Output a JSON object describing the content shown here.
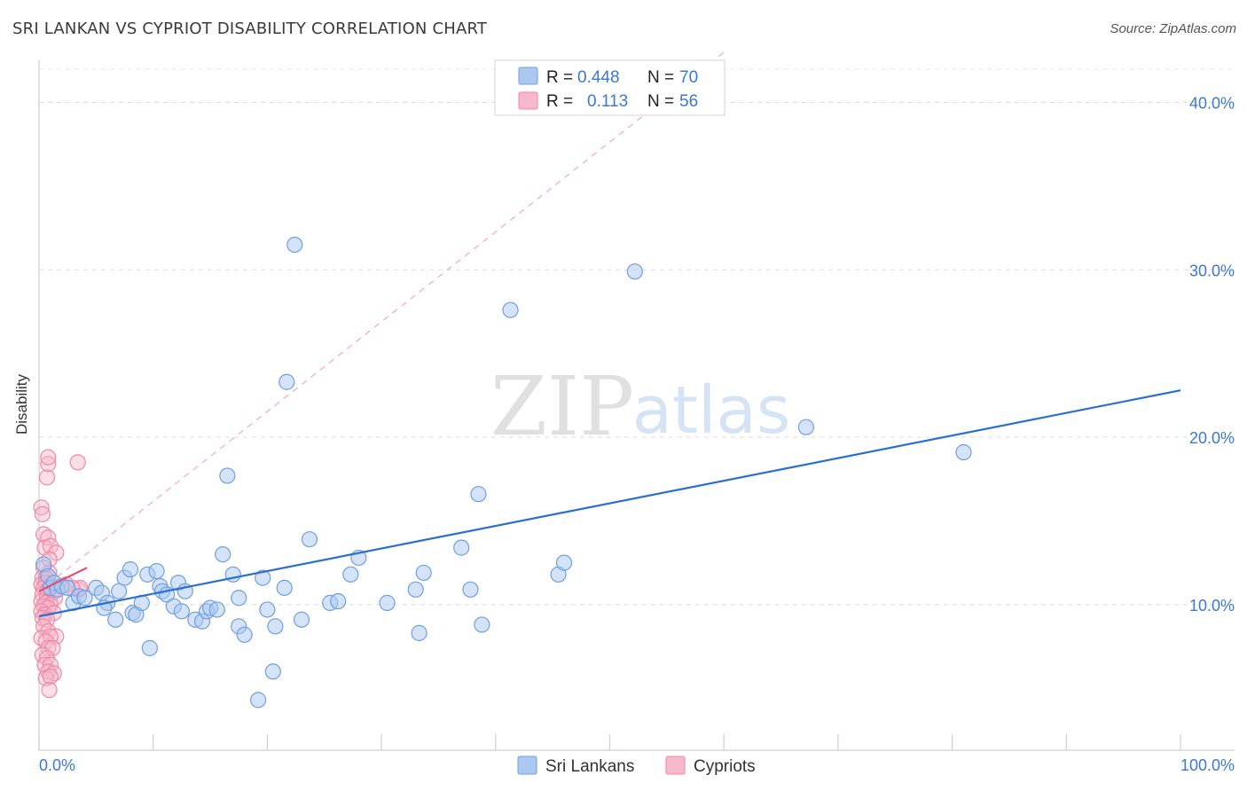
{
  "header": {
    "title": "SRI LANKAN VS CYPRIOT DISABILITY CORRELATION CHART",
    "source": "Source: ZipAtlas.com"
  },
  "watermark": {
    "zip": "ZIP",
    "atlas": "atlas"
  },
  "legend_box": {
    "rows": [
      {
        "r_label": "R =",
        "r_value": "0.448",
        "n_label": "N =",
        "n_value": "70"
      },
      {
        "r_label": "R =",
        "r_value": "0.113",
        "n_label": "N =",
        "n_value": "56"
      }
    ]
  },
  "bottom_legend": [
    {
      "label": "Sri Lankans"
    },
    {
      "label": "Cypriots"
    }
  ],
  "colors": {
    "blue_fill": "#aac8f0",
    "blue_stroke": "#6f9fdf",
    "blue_line": "#2a6fd0",
    "pink_fill": "#f6b8ca",
    "pink_stroke": "#ee88a8",
    "pink_line": "#e0507a",
    "axis_text": "#3b78d4"
  },
  "chart_data": {
    "type": "scatter",
    "title": "SRI LANKAN VS CYPRIOT DISABILITY CORRELATION CHART",
    "ylabel": "Disability",
    "xlabel": "",
    "xlim": [
      0,
      100
    ],
    "ylim": [
      1.3,
      42.2
    ],
    "x_tick_labels": [
      "0.0%",
      "100.0%"
    ],
    "y_ticks": [
      10,
      20,
      30,
      40
    ],
    "y_tick_labels": [
      "10.0%",
      "20.0%",
      "30.0%",
      "40.0%"
    ],
    "grid": true,
    "legend_position": "top-center",
    "series": [
      {
        "name": "Sri Lankans",
        "r": 0.448,
        "n": 70,
        "trend": {
          "x": [
            0,
            100
          ],
          "y": [
            9.3,
            22.8
          ]
        },
        "points": [
          [
            0.4,
            12.4
          ],
          [
            0.8,
            11.7
          ],
          [
            1.0,
            11.0
          ],
          [
            1.3,
            11.3
          ],
          [
            1.6,
            10.9
          ],
          [
            2.0,
            11.1
          ],
          [
            2.5,
            11.0
          ],
          [
            3.0,
            10.1
          ],
          [
            3.5,
            10.5
          ],
          [
            4.0,
            10.4
          ],
          [
            5.0,
            11.0
          ],
          [
            5.5,
            10.7
          ],
          [
            6.0,
            10.1
          ],
          [
            5.7,
            9.8
          ],
          [
            7.0,
            10.8
          ],
          [
            6.7,
            9.1
          ],
          [
            7.5,
            11.6
          ],
          [
            8.0,
            12.1
          ],
          [
            8.2,
            9.5
          ],
          [
            8.5,
            9.4
          ],
          [
            9.0,
            10.1
          ],
          [
            9.5,
            11.8
          ],
          [
            9.7,
            7.4
          ],
          [
            10.3,
            12.0
          ],
          [
            10.6,
            11.1
          ],
          [
            10.8,
            10.8
          ],
          [
            11.2,
            10.6
          ],
          [
            11.8,
            9.9
          ],
          [
            12.2,
            11.3
          ],
          [
            12.5,
            9.6
          ],
          [
            12.8,
            10.8
          ],
          [
            13.7,
            9.1
          ],
          [
            14.3,
            9.0
          ],
          [
            14.7,
            9.6
          ],
          [
            15.0,
            9.8
          ],
          [
            15.6,
            9.7
          ],
          [
            16.1,
            13.0
          ],
          [
            16.5,
            17.7
          ],
          [
            17.0,
            11.8
          ],
          [
            17.5,
            8.7
          ],
          [
            18.0,
            8.2
          ],
          [
            19.2,
            4.3
          ],
          [
            19.6,
            11.6
          ],
          [
            20.0,
            9.7
          ],
          [
            20.7,
            8.7
          ],
          [
            21.5,
            11.0
          ],
          [
            21.7,
            23.3
          ],
          [
            22.4,
            31.5
          ],
          [
            23.0,
            9.1
          ],
          [
            23.7,
            13.9
          ],
          [
            25.5,
            10.1
          ],
          [
            26.2,
            10.2
          ],
          [
            27.3,
            11.8
          ],
          [
            28.0,
            12.8
          ],
          [
            30.5,
            10.1
          ],
          [
            33.0,
            10.9
          ],
          [
            33.3,
            8.3
          ],
          [
            33.7,
            11.9
          ],
          [
            37.0,
            13.4
          ],
          [
            37.8,
            10.9
          ],
          [
            38.5,
            16.6
          ],
          [
            38.8,
            8.8
          ],
          [
            41.3,
            27.6
          ],
          [
            45.5,
            11.8
          ],
          [
            46.0,
            12.5
          ],
          [
            52.2,
            29.9
          ],
          [
            67.2,
            20.6
          ],
          [
            81.0,
            19.1
          ],
          [
            20.5,
            6.0
          ],
          [
            17.5,
            10.4
          ]
        ]
      },
      {
        "name": "Cypriots",
        "r": 0.113,
        "n": 56,
        "trend": {
          "x": [
            0,
            4.2
          ],
          "y": [
            10.8,
            12.2
          ]
        },
        "trend_dashed": {
          "x": [
            0,
            60
          ],
          "y": [
            10.8,
            43.0
          ]
        },
        "points": [
          [
            0.2,
            15.8
          ],
          [
            0.3,
            15.4
          ],
          [
            0.7,
            17.6
          ],
          [
            0.8,
            18.4
          ],
          [
            0.8,
            18.8
          ],
          [
            3.4,
            18.5
          ],
          [
            0.4,
            14.2
          ],
          [
            0.8,
            14.0
          ],
          [
            0.5,
            13.4
          ],
          [
            1.0,
            13.5
          ],
          [
            1.5,
            13.1
          ],
          [
            0.9,
            12.7
          ],
          [
            0.4,
            12.2
          ],
          [
            0.9,
            11.9
          ],
          [
            0.3,
            11.6
          ],
          [
            0.6,
            11.6
          ],
          [
            0.2,
            11.2
          ],
          [
            0.6,
            11.3
          ],
          [
            1.1,
            11.1
          ],
          [
            0.4,
            11.0
          ],
          [
            0.8,
            10.9
          ],
          [
            1.2,
            10.7
          ],
          [
            0.3,
            10.6
          ],
          [
            0.7,
            10.5
          ],
          [
            1.4,
            10.4
          ],
          [
            0.2,
            10.2
          ],
          [
            0.6,
            10.1
          ],
          [
            1.0,
            10.0
          ],
          [
            0.4,
            9.9
          ],
          [
            0.8,
            9.8
          ],
          [
            0.2,
            9.6
          ],
          [
            0.5,
            9.4
          ],
          [
            1.3,
            9.5
          ],
          [
            0.3,
            9.2
          ],
          [
            0.7,
            9.1
          ],
          [
            0.4,
            8.7
          ],
          [
            0.8,
            8.4
          ],
          [
            1.5,
            8.1
          ],
          [
            0.2,
            8.0
          ],
          [
            1.0,
            8.1
          ],
          [
            0.6,
            7.8
          ],
          [
            0.8,
            7.4
          ],
          [
            1.2,
            7.4
          ],
          [
            0.3,
            7.0
          ],
          [
            0.7,
            6.8
          ],
          [
            0.5,
            6.4
          ],
          [
            1.0,
            6.4
          ],
          [
            0.8,
            6.0
          ],
          [
            1.3,
            5.9
          ],
          [
            0.6,
            5.6
          ],
          [
            1.0,
            5.7
          ],
          [
            0.9,
            4.9
          ],
          [
            3.5,
            10.9
          ],
          [
            3.6,
            11.0
          ],
          [
            2.4,
            11.2
          ],
          [
            2.9,
            11.0
          ]
        ]
      }
    ]
  }
}
